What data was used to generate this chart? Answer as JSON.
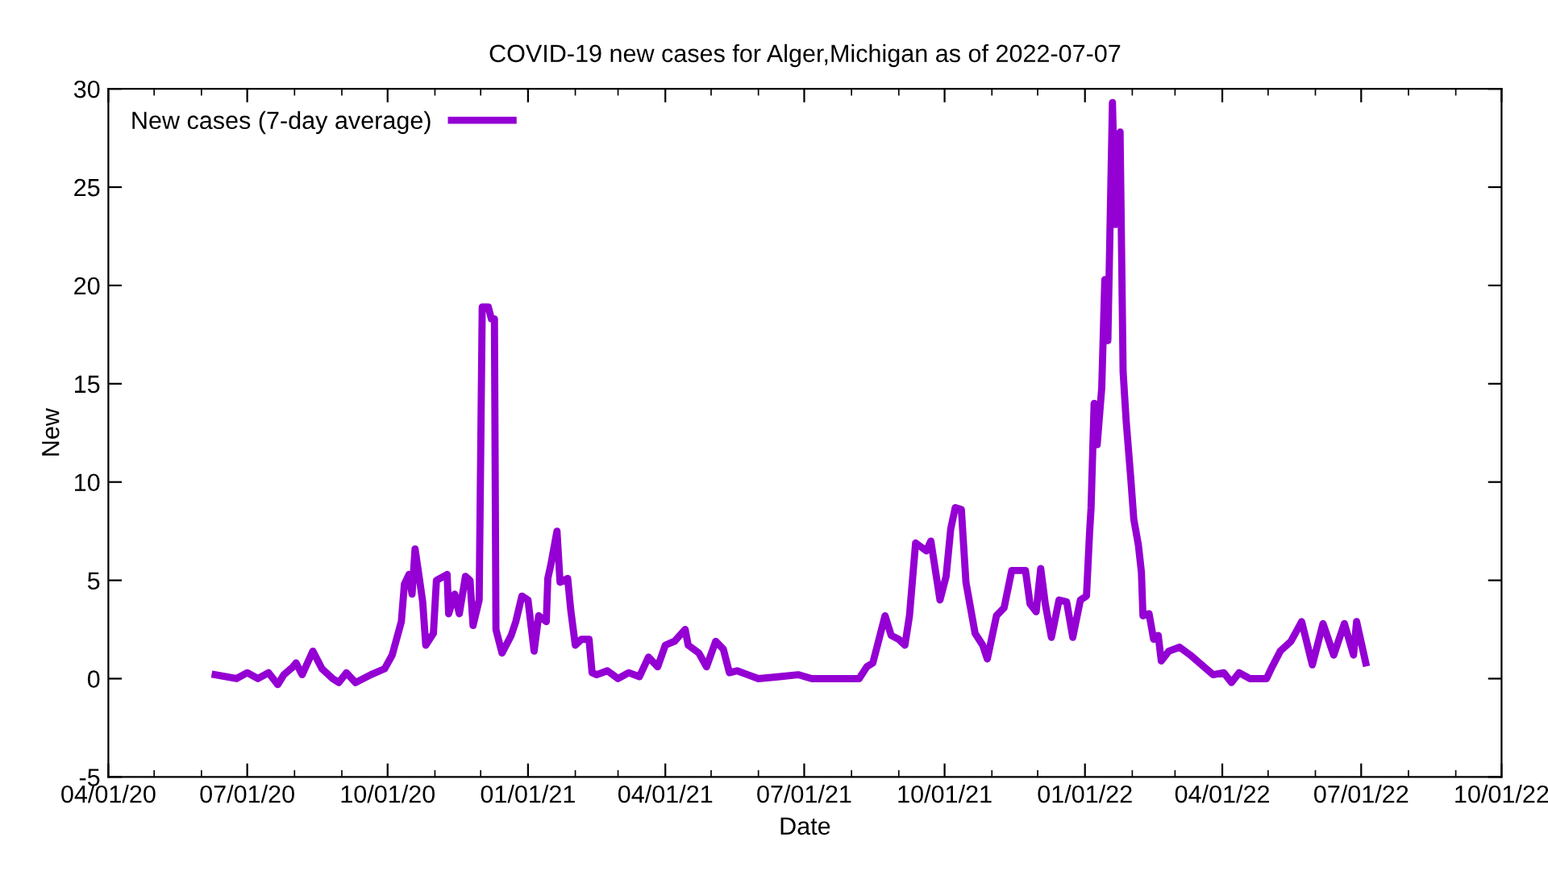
{
  "chart_data": {
    "type": "line",
    "title": "COVID-19 new cases for Alger,Michigan as of 2022-07-07",
    "xlabel": "Date",
    "ylabel": "New",
    "xlim": [
      "2020-04-01",
      "2022-10-01"
    ],
    "xticks": [
      {
        "value": "2020-04-01",
        "label": "04/01/20"
      },
      {
        "value": "2020-07-01",
        "label": "07/01/20"
      },
      {
        "value": "2020-10-01",
        "label": "10/01/20"
      },
      {
        "value": "2021-01-01",
        "label": "01/01/21"
      },
      {
        "value": "2021-04-01",
        "label": "04/01/21"
      },
      {
        "value": "2021-07-01",
        "label": "07/01/21"
      },
      {
        "value": "2021-10-01",
        "label": "10/01/21"
      },
      {
        "value": "2022-01-01",
        "label": "01/01/22"
      },
      {
        "value": "2022-04-01",
        "label": "04/01/22"
      },
      {
        "value": "2022-07-01",
        "label": "07/01/22"
      },
      {
        "value": "2022-10-01",
        "label": "10/01/22"
      }
    ],
    "ylim": [
      -5,
      30
    ],
    "yticks": [
      -5,
      0,
      5,
      10,
      15,
      20,
      25,
      30
    ],
    "grid": false,
    "legend": "top left",
    "marker": "none",
    "line_style": "solid",
    "series": [
      {
        "name": "New cases (7-day average)",
        "color": "#9400d3",
        "x": [
          "2020-06-10",
          "2020-06-24",
          "2020-07-01",
          "2020-07-08",
          "2020-07-15",
          "2020-07-21",
          "2020-07-25",
          "2020-07-31",
          "2020-08-02",
          "2020-08-06",
          "2020-08-13",
          "2020-08-19",
          "2020-08-26",
          "2020-08-30",
          "2020-09-04",
          "2020-09-10",
          "2020-09-20",
          "2020-09-29",
          "2020-10-04",
          "2020-10-10",
          "2020-10-12",
          "2020-10-15",
          "2020-10-17",
          "2020-10-19",
          "2020-10-22",
          "2020-10-24",
          "2020-10-26",
          "2020-10-31",
          "2020-11-02",
          "2020-11-09",
          "2020-11-10",
          "2020-11-14",
          "2020-11-17",
          "2020-11-21",
          "2020-11-24",
          "2020-11-26",
          "2020-11-30",
          "2020-12-02",
          "2020-12-06",
          "2020-12-08",
          "2020-12-10",
          "2020-12-11",
          "2020-12-15",
          "2020-12-21",
          "2020-12-24",
          "2020-12-28",
          "2021-01-01",
          "2021-01-05",
          "2021-01-08",
          "2021-01-13",
          "2021-01-14",
          "2021-01-16",
          "2021-01-20",
          "2021-01-22",
          "2021-01-27",
          "2021-01-29",
          "2021-02-01",
          "2021-02-05",
          "2021-02-10",
          "2021-02-12",
          "2021-02-15",
          "2021-02-22",
          "2021-03-01",
          "2021-03-08",
          "2021-03-15",
          "2021-03-21",
          "2021-03-27",
          "2021-04-01",
          "2021-04-07",
          "2021-04-14",
          "2021-04-16",
          "2021-04-23",
          "2021-04-28",
          "2021-05-04",
          "2021-05-09",
          "2021-05-13",
          "2021-05-18",
          "2021-05-25",
          "2021-06-01",
          "2021-06-15",
          "2021-06-27",
          "2021-07-06",
          "2021-08-06",
          "2021-08-11",
          "2021-08-15",
          "2021-08-18",
          "2021-08-23",
          "2021-08-27",
          "2021-09-01",
          "2021-09-05",
          "2021-09-08",
          "2021-09-12",
          "2021-09-19",
          "2021-09-22",
          "2021-09-28",
          "2021-10-02",
          "2021-10-05",
          "2021-10-08",
          "2021-10-12",
          "2021-10-15",
          "2021-10-21",
          "2021-10-26",
          "2021-10-29",
          "2021-11-04",
          "2021-11-09",
          "2021-11-14",
          "2021-11-23",
          "2021-11-26",
          "2021-11-30",
          "2021-12-03",
          "2021-12-06",
          "2021-12-10",
          "2021-12-15",
          "2021-12-20",
          "2021-12-24",
          "2021-12-29",
          "2022-01-02",
          "2022-01-04",
          "2022-01-05",
          "2022-01-07",
          "2022-01-09",
          "2022-01-12",
          "2022-01-14",
          "2022-01-16",
          "2022-01-19",
          "2022-01-21",
          "2022-01-24",
          "2022-01-26",
          "2022-01-28",
          "2022-01-31",
          "2022-02-02",
          "2022-02-05",
          "2022-02-07",
          "2022-02-08",
          "2022-02-12",
          "2022-02-15",
          "2022-02-18",
          "2022-02-20",
          "2022-02-25",
          "2022-03-04",
          "2022-03-11",
          "2022-03-20",
          "2022-03-26",
          "2022-04-02",
          "2022-04-07",
          "2022-04-12",
          "2022-04-19",
          "2022-04-30",
          "2022-05-03",
          "2022-05-09",
          "2022-05-16",
          "2022-05-23",
          "2022-05-30",
          "2022-06-06",
          "2022-06-13",
          "2022-06-20",
          "2022-06-26",
          "2022-06-28",
          "2022-07-04"
        ],
        "values": [
          0.2,
          0.0,
          0.3,
          0.0,
          0.3,
          -0.3,
          0.2,
          0.6,
          0.8,
          0.2,
          1.4,
          0.5,
          0.0,
          -0.2,
          0.3,
          -0.2,
          0.2,
          0.5,
          1.2,
          2.9,
          4.8,
          5.3,
          4.3,
          6.6,
          5.0,
          3.9,
          1.7,
          2.3,
          5.0,
          5.3,
          3.3,
          4.3,
          3.3,
          5.2,
          5.0,
          2.7,
          4.0,
          18.9,
          18.9,
          18.3,
          18.3,
          2.5,
          1.3,
          2.2,
          2.9,
          4.2,
          4.0,
          1.4,
          3.2,
          2.9,
          5.1,
          5.8,
          7.5,
          4.9,
          5.1,
          3.5,
          1.7,
          2.0,
          2.0,
          0.3,
          0.2,
          0.4,
          0.0,
          0.3,
          0.1,
          1.1,
          0.6,
          1.7,
          1.9,
          2.5,
          1.7,
          1.3,
          0.6,
          1.9,
          1.5,
          0.3,
          0.4,
          0.2,
          0.0,
          0.1,
          0.2,
          0.0,
          0.0,
          0.6,
          0.8,
          1.7,
          3.2,
          2.2,
          2.0,
          1.7,
          3.2,
          6.9,
          6.5,
          7.0,
          4.0,
          5.2,
          7.6,
          8.7,
          8.6,
          4.9,
          2.3,
          1.7,
          1.0,
          3.2,
          3.6,
          5.5,
          5.5,
          3.8,
          3.4,
          5.6,
          3.8,
          2.1,
          4.0,
          3.9,
          2.1,
          4.0,
          4.2,
          7.4,
          8.7,
          14.0,
          11.9,
          14.8,
          20.3,
          17.2,
          29.3,
          23.1,
          27.8,
          15.6,
          13.1,
          10.2,
          8.1,
          6.8,
          5.4,
          3.2,
          3.3,
          2.0,
          2.2,
          0.9,
          1.4,
          1.6,
          1.2,
          0.6,
          0.2,
          0.3,
          -0.2,
          0.3,
          0.0,
          0.0,
          0.5,
          1.4,
          1.9,
          2.9,
          0.7,
          2.8,
          1.2,
          2.8,
          1.2,
          2.9,
          0.8
        ]
      }
    ]
  }
}
